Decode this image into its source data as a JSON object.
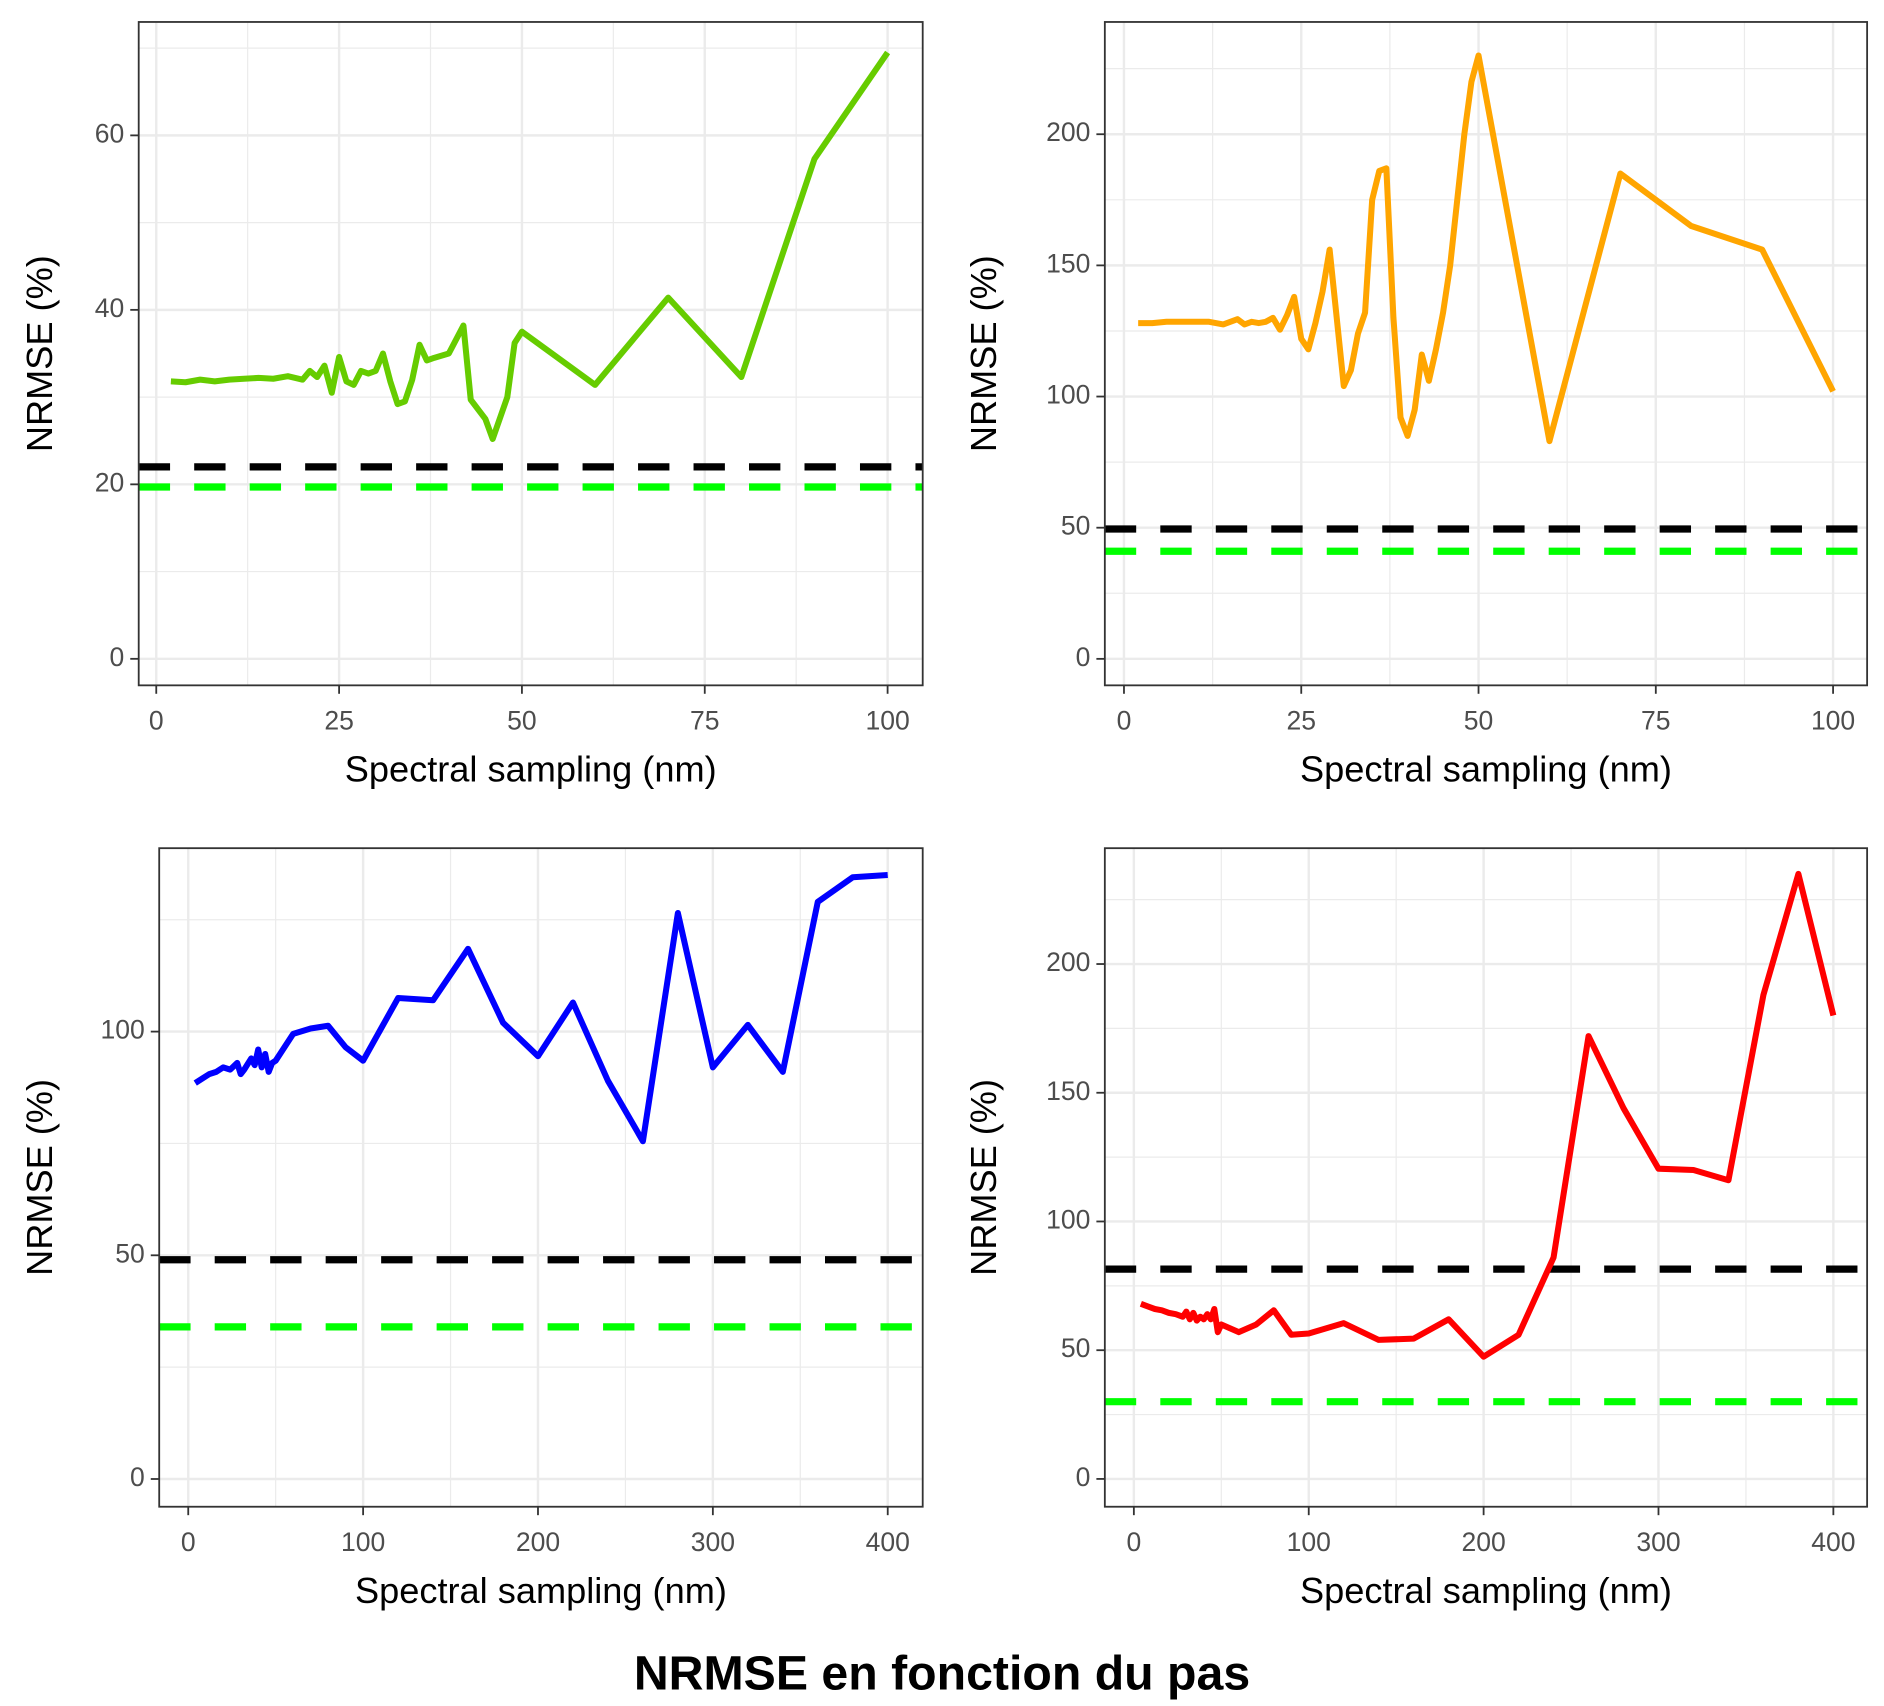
{
  "title": "NRMSE en fonction du pas",
  "chart_data": [
    {
      "type": "line",
      "x_label": "Spectral sampling (nm)",
      "y_label": "NRMSE (%)",
      "color": "#66cc00",
      "grid": true,
      "x": [
        2,
        4,
        6,
        8,
        10,
        12,
        14,
        16,
        18,
        20,
        21,
        22,
        23,
        24,
        25,
        26,
        27,
        28,
        29,
        30,
        31,
        32,
        33,
        34,
        35,
        36,
        37,
        38,
        40,
        42,
        43,
        45,
        46,
        48,
        49,
        50,
        60,
        70,
        80,
        90,
        100
      ],
      "values": [
        31.8,
        31.7,
        32,
        31.8,
        32,
        32.1,
        32.2,
        32.1,
        32.4,
        32,
        33,
        32.3,
        33.6,
        30.5,
        34.6,
        31.8,
        31.4,
        33,
        32.7,
        33,
        35,
        31.8,
        29.2,
        29.5,
        32,
        36,
        34.2,
        34.5,
        35,
        38.2,
        29.7,
        27.5,
        25.2,
        30,
        36.2,
        37.5,
        31.4,
        41.4,
        32.3,
        57.3,
        69.5
      ],
      "hlines": [
        {
          "value": 22,
          "color": "#000000"
        },
        {
          "value": 19.7,
          "color": "#00ff00"
        }
      ],
      "xlim": [
        -2.4,
        104.8
      ],
      "ylim": [
        -3.04,
        73
      ],
      "xticks": [
        0,
        25,
        50,
        75,
        100
      ],
      "yticks": [
        0,
        20,
        40,
        60
      ]
    },
    {
      "type": "line",
      "x_label": "Spectral sampling (nm)",
      "y_label": "NRMSE (%)",
      "color": "#ffa500",
      "grid": true,
      "x": [
        2,
        4,
        6,
        8,
        10,
        12,
        14,
        15,
        16,
        17,
        18,
        19,
        20,
        21,
        22,
        23,
        24,
        25,
        26,
        27,
        28,
        29,
        30,
        31,
        32,
        33,
        34,
        35,
        36,
        37,
        38,
        39,
        40,
        41,
        42,
        43,
        44,
        45,
        46,
        47,
        48,
        49,
        50,
        60,
        70,
        80,
        90,
        100
      ],
      "values": [
        128,
        128,
        128.5,
        128.5,
        128.5,
        128.5,
        127.5,
        128.5,
        129.5,
        127.5,
        128.5,
        128,
        128.5,
        130,
        125.5,
        131,
        138,
        122,
        118,
        128,
        140,
        156,
        130,
        104,
        110,
        124,
        132,
        175,
        186,
        187,
        130,
        92,
        85,
        95,
        116,
        106,
        118,
        132,
        150,
        175,
        200,
        220,
        230,
        83,
        185,
        165,
        156,
        102
      ],
      "hlines": [
        {
          "value": 49.5,
          "color": "#000000"
        },
        {
          "value": 41,
          "color": "#00ff00"
        }
      ],
      "xlim": [
        -2.7,
        104.8
      ],
      "ylim": [
        -10.1,
        242.8
      ],
      "xticks": [
        0,
        25,
        50,
        75,
        100
      ],
      "yticks": [
        0,
        50,
        100,
        150,
        200
      ]
    },
    {
      "type": "line",
      "x_label": "Spectral sampling (nm)",
      "y_label": "NRMSE (%)",
      "color": "#0000ff",
      "grid": true,
      "x": [
        4,
        8,
        12,
        16,
        20,
        24,
        28,
        30,
        32,
        36,
        38,
        40,
        42,
        44,
        46,
        48,
        50,
        60,
        70,
        80,
        90,
        100,
        120,
        140,
        160,
        180,
        200,
        220,
        240,
        260,
        280,
        300,
        320,
        340,
        360,
        380,
        400
      ],
      "values": [
        88.5,
        89.5,
        90.5,
        91,
        92,
        91.5,
        93,
        90.5,
        91.5,
        94,
        92.5,
        96,
        92,
        95,
        91,
        93,
        93.5,
        99.5,
        100.7,
        101.3,
        96.5,
        93.5,
        107.5,
        107,
        118.5,
        102,
        94.5,
        106.5,
        89,
        75.5,
        126.5,
        92,
        101.5,
        91,
        129,
        134.5,
        135
      ],
      "hlines": [
        {
          "value": 49,
          "color": "#000000"
        },
        {
          "value": 34,
          "color": "#00ff00"
        }
      ],
      "xlim": [
        -16.6,
        420
      ],
      "ylim": [
        -6.2,
        141
      ],
      "xticks": [
        0,
        100,
        200,
        300,
        400
      ],
      "yticks": [
        0,
        50,
        100
      ]
    },
    {
      "type": "line",
      "x_label": "Spectral sampling (nm)",
      "y_label": "NRMSE (%)",
      "color": "#ff0000",
      "grid": true,
      "x": [
        4,
        8,
        12,
        16,
        20,
        24,
        28,
        30,
        32,
        34,
        36,
        38,
        40,
        42,
        44,
        46,
        48,
        50,
        60,
        70,
        80,
        90,
        100,
        120,
        140,
        160,
        180,
        200,
        220,
        240,
        260,
        280,
        300,
        320,
        340,
        360,
        380,
        400
      ],
      "values": [
        68,
        67,
        66,
        65.5,
        64.5,
        64,
        63,
        65,
        62,
        64.5,
        61.5,
        63,
        62,
        64,
        62,
        66,
        57,
        60,
        57,
        60,
        65.5,
        56,
        56.5,
        60.5,
        54,
        54.5,
        62,
        47.5,
        56,
        86,
        172,
        144,
        120.5,
        120,
        116,
        188,
        235,
        180
      ],
      "hlines": [
        {
          "value": 81.5,
          "color": "#000000"
        },
        {
          "value": 30,
          "color": "#00ff00"
        }
      ],
      "xlim": [
        -16.6,
        419.3
      ],
      "ylim": [
        -10.8,
        245
      ],
      "xticks": [
        0,
        100,
        200,
        300,
        400
      ],
      "yticks": [
        0,
        50,
        100,
        150,
        200
      ]
    }
  ]
}
